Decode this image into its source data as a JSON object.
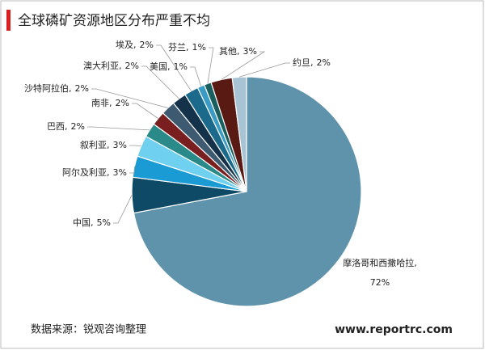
{
  "chart_data": {
    "type": "pie",
    "title": "全球磷矿资源地区分布严重不均",
    "categories": [
      "摩洛哥和西撒哈拉",
      "中国",
      "阿尔及利亚",
      "叙利亚",
      "巴西",
      "南非",
      "沙特阿拉伯",
      "澳大利亚",
      "埃及",
      "美国",
      "芬兰",
      "其他",
      "约旦"
    ],
    "values": [
      72,
      5,
      3,
      3,
      2,
      2,
      2,
      2,
      2,
      1,
      1,
      3,
      2
    ],
    "value_labels": [
      "72%",
      "5%",
      "3%",
      "3%",
      "2%",
      "2%",
      "2%",
      "2%",
      "2%",
      "1%",
      "1%",
      "3%",
      "2%"
    ],
    "label_separator": ",",
    "colors": [
      "#5f93ab",
      "#0e4a66",
      "#1b9bd4",
      "#6fd0ef",
      "#2a8a8a",
      "#7a1f1f",
      "#3d5a70",
      "#14334a",
      "#1b6a8c",
      "#3a9bc4",
      "#1a5f5f",
      "#5a1a14",
      "#a8c4d4"
    ],
    "source": "数据来源：锐观咨询整理",
    "website": "www.reportrc.com"
  }
}
